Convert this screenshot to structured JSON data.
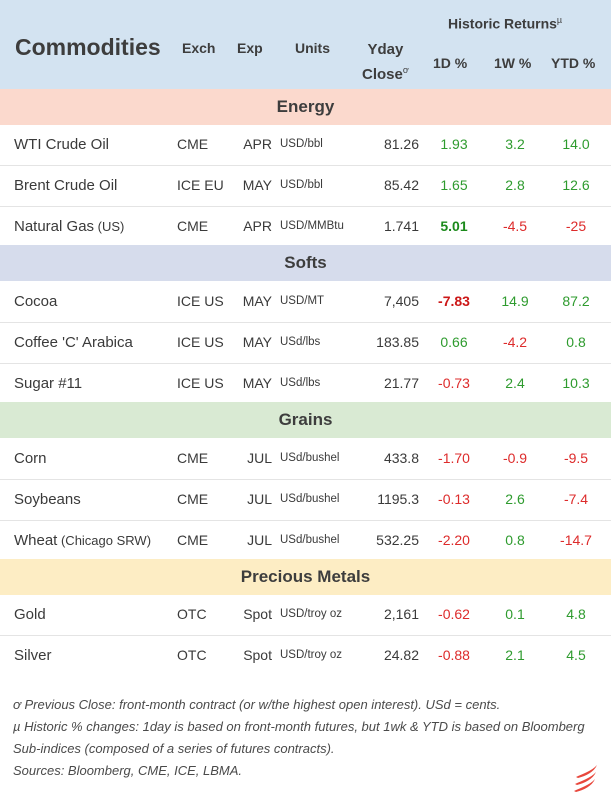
{
  "header": {
    "title": "Commodities",
    "exch": "Exch",
    "exp": "Exp",
    "units": "Units",
    "yday_line1": "Yday",
    "yday_line2": "Close",
    "yday_mark": "ơ",
    "historic": "Historic Returns",
    "historic_mark": "µ",
    "d1": "1D %",
    "w1": "1W %",
    "ytd": "YTD %"
  },
  "sections": {
    "energy": "Energy",
    "softs": "Softs",
    "grains": "Grains",
    "metals": "Precious Metals"
  },
  "rows": [
    {
      "name": "WTI Crude Oil",
      "note": "",
      "exch": "CME",
      "exp": "APR",
      "units": "USD/bbl",
      "close": "81.26",
      "d1": "1.93",
      "w1": "3.2",
      "ytd": "14.0"
    },
    {
      "name": "Brent Crude Oil",
      "note": "",
      "exch": "ICE EU",
      "exp": "MAY",
      "units": "USD/bbl",
      "close": "85.42",
      "d1": "1.65",
      "w1": "2.8",
      "ytd": "12.6"
    },
    {
      "name": "Natural Gas",
      "note": " (US)",
      "exch": "CME",
      "exp": "APR",
      "units": "USD/MMBtu",
      "close": "1.741",
      "d1": "5.01",
      "w1": "-4.5",
      "ytd": "-25"
    },
    {
      "name": "Cocoa",
      "note": "",
      "exch": "ICE US",
      "exp": "MAY",
      "units": "USD/MT",
      "close": "7,405",
      "d1": "-7.83",
      "w1": "14.9",
      "ytd": "87.2"
    },
    {
      "name": "Coffee 'C' Arabica",
      "note": "",
      "exch": "ICE US",
      "exp": "MAY",
      "units": "USd/lbs",
      "close": "183.85",
      "d1": "0.66",
      "w1": "-4.2",
      "ytd": "0.8"
    },
    {
      "name": "Sugar #11",
      "note": "",
      "exch": "ICE US",
      "exp": "MAY",
      "units": "USd/lbs",
      "close": "21.77",
      "d1": "-0.73",
      "w1": "2.4",
      "ytd": "10.3"
    },
    {
      "name": "Corn",
      "note": "",
      "exch": "CME",
      "exp": "JUL",
      "units": "USd/bushel",
      "close": "433.8",
      "d1": "-1.70",
      "w1": "-0.9",
      "ytd": "-9.5"
    },
    {
      "name": "Soybeans",
      "note": "",
      "exch": "CME",
      "exp": "JUL",
      "units": "USd/bushel",
      "close": "1195.3",
      "d1": "-0.13",
      "w1": "2.6",
      "ytd": "-7.4"
    },
    {
      "name": "Wheat",
      "note": " (Chicago SRW)",
      "exch": "CME",
      "exp": "JUL",
      "units": "USd/bushel",
      "close": "532.25",
      "d1": "-2.20",
      "w1": "0.8",
      "ytd": "-14.7"
    },
    {
      "name": "Gold",
      "note": "",
      "exch": "OTC",
      "exp": "Spot",
      "units": "USD/troy oz",
      "close": "2,161",
      "d1": "-0.62",
      "w1": "0.1",
      "ytd": "4.8"
    },
    {
      "name": "Silver",
      "note": "",
      "exch": "OTC",
      "exp": "Spot",
      "units": "USD/troy oz",
      "close": "24.82",
      "d1": "-0.88",
      "w1": "2.1",
      "ytd": "4.5"
    }
  ],
  "footer": {
    "note1": "ơ Previous Close: front-month contract (or w/the highest open interest). USd = cents.",
    "note2": "µ Historic % changes: 1day is based on front-month futures, but 1wk & YTD is based on Bloomberg Sub-indices (composed of a series of futures contracts).",
    "sources": "Sources: Bloomberg, CME, ICE, LBMA."
  },
  "colors": {
    "header_bg": "#d3e3f1",
    "energy_bg": "#fbd9cd",
    "softs_bg": "#d6dcec",
    "grains_bg": "#d9ead3",
    "metals_bg": "#fdedc4",
    "positive": "#2e9b2e",
    "negative": "#dd2b2b",
    "logo": "#e8473c"
  },
  "logo_icon": "flame-logo-icon"
}
